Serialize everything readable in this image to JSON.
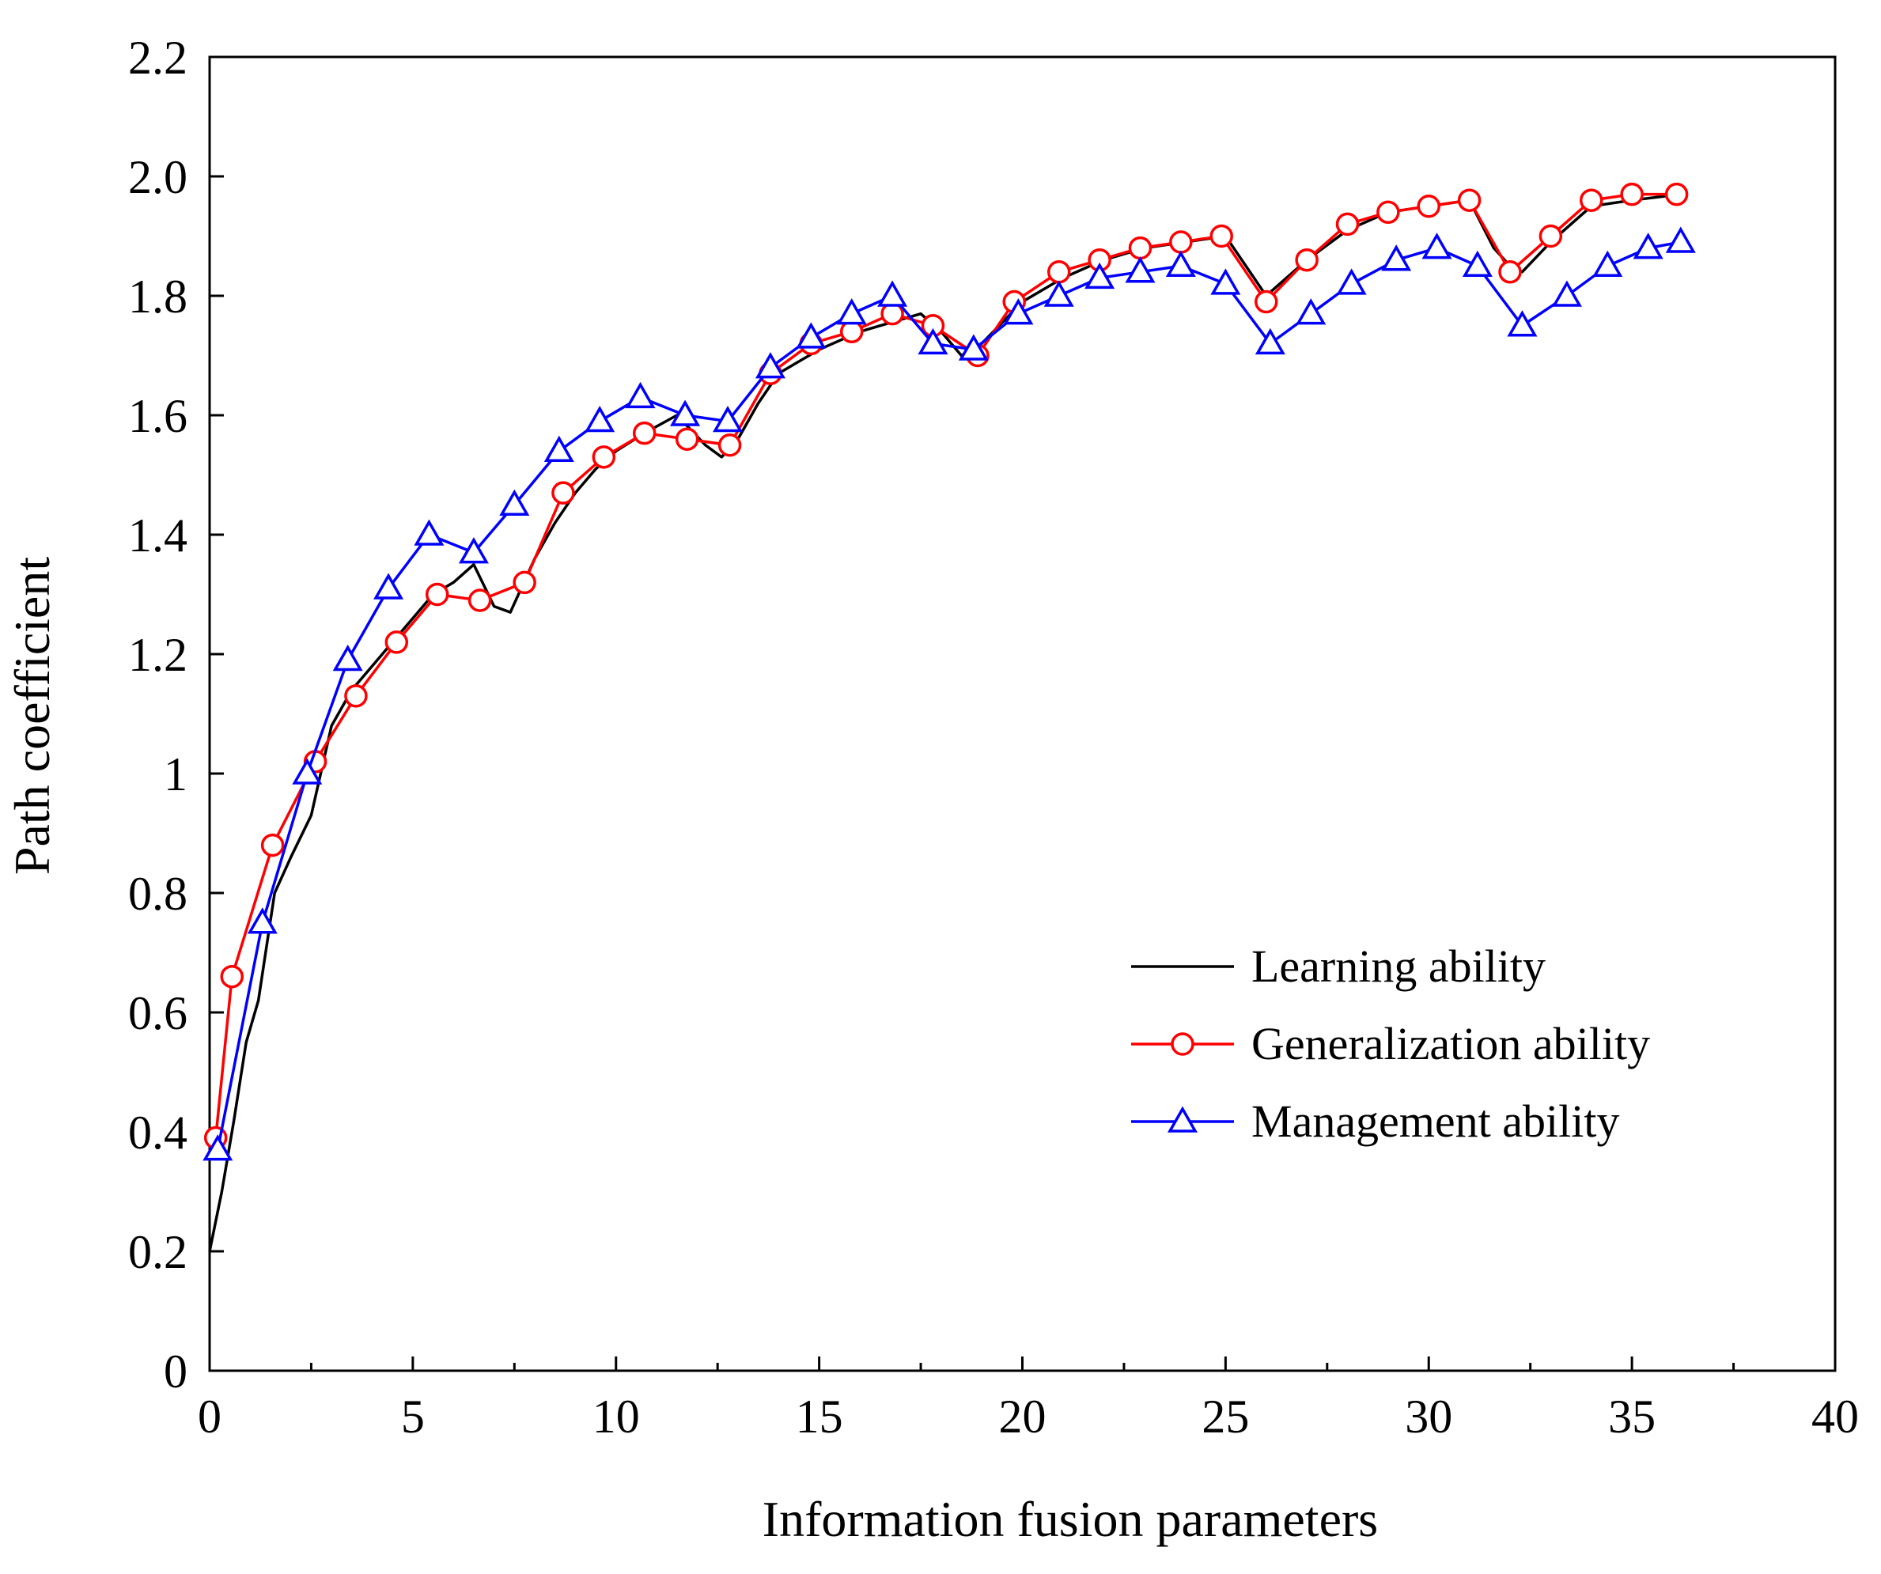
{
  "chart_data": {
    "type": "line",
    "title": "",
    "xlabel": "Information fusion parameters",
    "ylabel": "Path coefficient",
    "xlim": [
      0,
      40
    ],
    "ylim": [
      0,
      2.2
    ],
    "x_ticks": [
      0,
      5,
      10,
      15,
      20,
      25,
      30,
      35,
      40
    ],
    "x_tick_labels": [
      "0",
      "5",
      "10",
      "15",
      "20",
      "25",
      "30",
      "35",
      "40"
    ],
    "y_ticks": [
      0,
      0.2,
      0.4,
      0.6,
      0.8,
      1,
      1.2,
      1.4,
      1.6,
      1.8,
      2.0,
      2.2
    ],
    "y_tick_labels": [
      "0",
      "0.2",
      "0.4",
      "0.6",
      "0.8",
      "1",
      "1.2",
      "1.4",
      "1.6",
      "1.8",
      "2.0",
      "2.2"
    ],
    "grid": false,
    "legend_position": "lower-right",
    "series": [
      {
        "name": "Learning ability",
        "color": "#000000",
        "marker": "none",
        "x": [
          0.0,
          0.3,
          0.6,
          0.9,
          1.2,
          1.6,
          2.0,
          2.5,
          3.0,
          3.5,
          4.0,
          4.5,
          5.0,
          5.5,
          6.0,
          6.5,
          7.0,
          7.4,
          8.0,
          8.5,
          9.0,
          9.5,
          10.0,
          10.7,
          11.5,
          12.2,
          12.6,
          13.0,
          13.5,
          14.0,
          15.0,
          16.0,
          17.0,
          17.5,
          18.0,
          18.5,
          19.0,
          20.0,
          21.0,
          22.0,
          23.0,
          24.0,
          25.0,
          26.0,
          27.0,
          28.0,
          29.0,
          30.0,
          31.0,
          31.6,
          32.0,
          32.3,
          33.0,
          34.0,
          35.0,
          36.2
        ],
        "y": [
          0.2,
          0.3,
          0.42,
          0.55,
          0.62,
          0.8,
          0.86,
          0.93,
          1.08,
          1.14,
          1.18,
          1.22,
          1.26,
          1.3,
          1.32,
          1.35,
          1.28,
          1.27,
          1.36,
          1.42,
          1.47,
          1.51,
          1.54,
          1.57,
          1.6,
          1.55,
          1.53,
          1.56,
          1.62,
          1.67,
          1.71,
          1.74,
          1.76,
          1.77,
          1.74,
          1.7,
          1.72,
          1.79,
          1.83,
          1.86,
          1.88,
          1.89,
          1.9,
          1.8,
          1.86,
          1.91,
          1.94,
          1.95,
          1.96,
          1.88,
          1.85,
          1.84,
          1.89,
          1.95,
          1.96,
          1.97
        ]
      },
      {
        "name": "Generalization ability",
        "color": "#ff0000",
        "marker": "circle",
        "x": [
          0.15,
          0.55,
          1.55,
          2.6,
          3.6,
          4.6,
          5.6,
          6.65,
          7.75,
          8.7,
          9.7,
          10.7,
          11.75,
          12.8,
          13.8,
          14.8,
          15.8,
          16.8,
          17.8,
          18.9,
          19.8,
          20.9,
          21.9,
          22.9,
          23.9,
          24.9,
          26.0,
          27.0,
          28.0,
          29.0,
          30.0,
          31.0,
          32.0,
          33.0,
          34.0,
          35.0,
          36.1
        ],
        "y": [
          0.39,
          0.66,
          0.88,
          1.02,
          1.13,
          1.22,
          1.3,
          1.29,
          1.32,
          1.47,
          1.53,
          1.57,
          1.56,
          1.55,
          1.67,
          1.72,
          1.74,
          1.77,
          1.75,
          1.7,
          1.79,
          1.84,
          1.86,
          1.88,
          1.89,
          1.9,
          1.79,
          1.86,
          1.92,
          1.94,
          1.95,
          1.96,
          1.84,
          1.9,
          1.96,
          1.97,
          1.97
        ]
      },
      {
        "name": "Management ability",
        "color": "#0000ff",
        "marker": "triangle",
        "x": [
          0.2,
          1.3,
          2.4,
          3.4,
          4.4,
          5.4,
          6.5,
          7.5,
          8.6,
          9.6,
          10.6,
          11.7,
          12.75,
          13.8,
          14.8,
          15.8,
          16.8,
          17.8,
          18.8,
          19.9,
          20.9,
          21.9,
          22.9,
          23.9,
          25.0,
          26.1,
          27.1,
          28.1,
          29.2,
          30.2,
          31.2,
          32.3,
          33.4,
          34.4,
          35.4,
          36.2
        ],
        "y": [
          0.37,
          0.75,
          1.0,
          1.19,
          1.31,
          1.4,
          1.37,
          1.45,
          1.54,
          1.59,
          1.63,
          1.6,
          1.59,
          1.68,
          1.73,
          1.77,
          1.8,
          1.72,
          1.71,
          1.77,
          1.8,
          1.83,
          1.84,
          1.85,
          1.82,
          1.72,
          1.77,
          1.82,
          1.86,
          1.88,
          1.85,
          1.75,
          1.8,
          1.85,
          1.88,
          1.89
        ]
      }
    ]
  }
}
